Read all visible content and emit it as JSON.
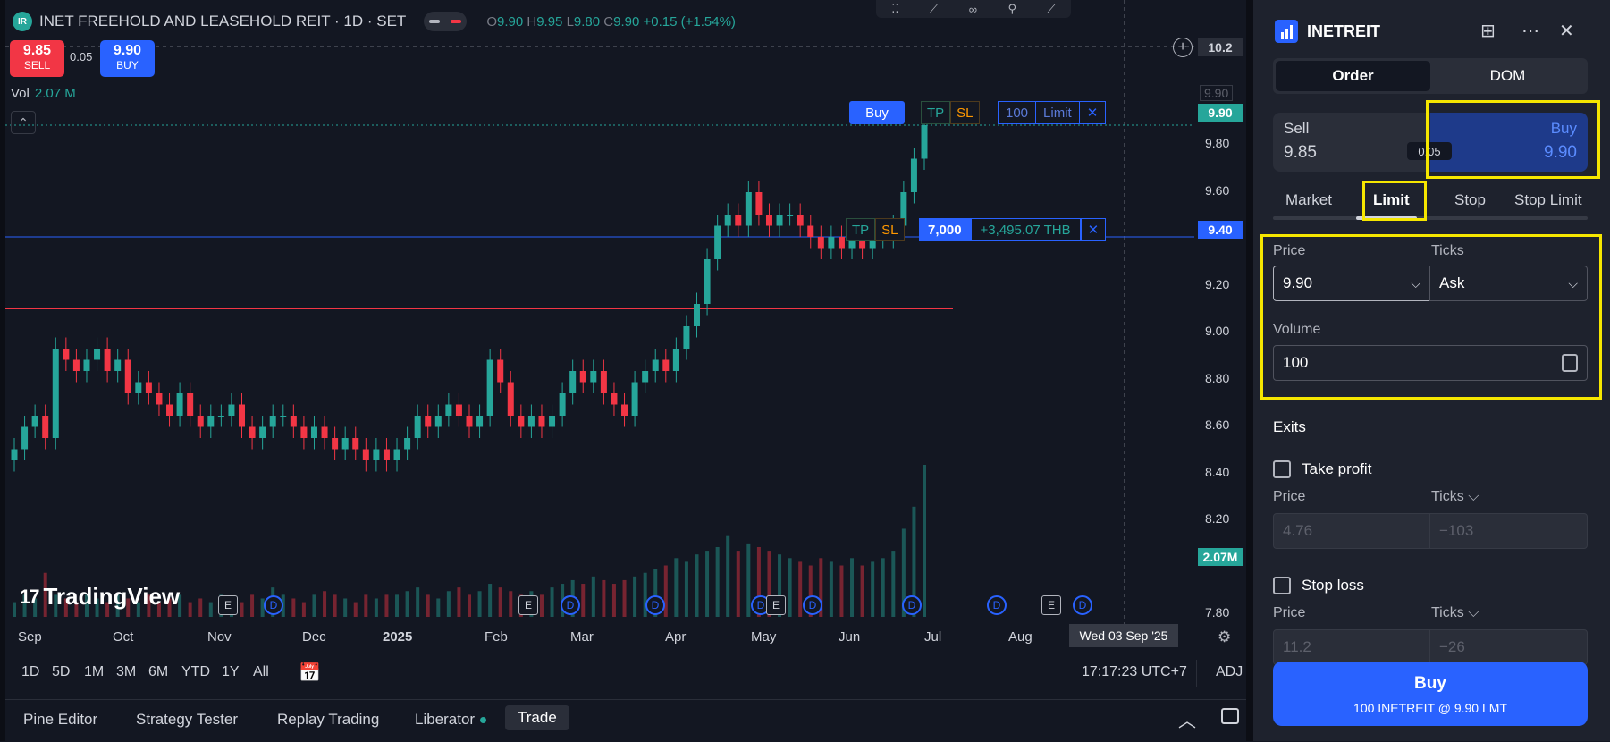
{
  "chart": {
    "title": "INET FREEHOLD AND LEASEHOLD REIT · 1D · SET",
    "logo_text": "IR",
    "ohlc": {
      "o_label": "O",
      "o": "9.90",
      "h_label": "H",
      "h": "9.95",
      "l_label": "L",
      "l": "9.80",
      "c_label": "C",
      "c": "9.90",
      "change": "+0.15 (+1.54%)"
    },
    "sell_price": "9.85",
    "sell_label": "SELL",
    "buy_price": "9.90",
    "buy_label": "BUY",
    "spread": "0.05",
    "vol_label": "Vol",
    "vol_value": "2.07 M",
    "collapse_glyph": "⌃",
    "order_line": {
      "buy_label": "Buy",
      "tp": "TP",
      "sl": "SL",
      "qty": "100",
      "type": "Limit",
      "close": "✕"
    },
    "position_line": {
      "tp": "TP",
      "sl": "SL",
      "qty": "7,000",
      "pnl": "+3,495.07 THB",
      "close": "✕"
    },
    "price_axis": {
      "top_tag": "10.2",
      "ghost": "9.90",
      "ticks": [
        "9.80",
        "9.60",
        "9.20",
        "9.00",
        "8.80",
        "8.60",
        "8.40",
        "8.20",
        "7.80"
      ],
      "last_tag": "9.90",
      "position_tag": "9.40",
      "volume_tag": "2.07M",
      "colors": {
        "last": "#26a69a",
        "position": "#2962ff",
        "volume": "#26a69a"
      }
    },
    "date_axis": {
      "labels": [
        "Sep",
        "Oct",
        "Nov",
        "Dec",
        "2025",
        "Feb",
        "Mar",
        "Apr",
        "May",
        "Jun",
        "Jul",
        "Aug"
      ],
      "crosshair": "Wed 03 Sep '25"
    },
    "events": [
      {
        "kind": "E",
        "icon": "earnings-icon"
      },
      {
        "kind": "D",
        "icon": "dividend-icon"
      },
      {
        "kind": "E",
        "icon": "earnings-icon"
      },
      {
        "kind": "D",
        "icon": "dividend-icon"
      },
      {
        "kind": "D",
        "icon": "dividend-icon"
      },
      {
        "kind": "D",
        "icon": "dividend-icon"
      },
      {
        "kind": "E",
        "icon": "earnings-icon"
      },
      {
        "kind": "D",
        "icon": "dividend-icon"
      },
      {
        "kind": "D",
        "icon": "dividend-icon"
      },
      {
        "kind": "D",
        "icon": "dividend-icon"
      },
      {
        "kind": "E",
        "icon": "earnings-icon"
      },
      {
        "kind": "D",
        "icon": "dividend-icon"
      }
    ],
    "watermark": "TradingView",
    "colors": {
      "up": "#26a69a",
      "down": "#f23645",
      "resistance": "#f23645",
      "position": "#2962ff"
    }
  },
  "chart_data": {
    "type": "candlestick",
    "xlabel": "",
    "ylabel": "",
    "ylim": [
      7.7,
      10.3
    ],
    "resistance_line": 9.08,
    "position_line": 9.4,
    "order_line": 9.9,
    "series": [
      {
        "name": "price",
        "values": [
          8.45,
          8.55,
          8.6,
          8.5,
          8.9,
          8.85,
          8.8,
          8.85,
          8.9,
          8.8,
          8.85,
          8.7,
          8.75,
          8.7,
          8.65,
          8.6,
          8.7,
          8.6,
          8.55,
          8.6,
          8.6,
          8.65,
          8.55,
          8.5,
          8.55,
          8.6,
          8.6,
          8.55,
          8.5,
          8.55,
          8.5,
          8.45,
          8.5,
          8.45,
          8.4,
          8.45,
          8.4,
          8.45,
          8.5,
          8.6,
          8.55,
          8.6,
          8.65,
          8.6,
          8.55,
          8.6,
          8.85,
          8.75,
          8.6,
          8.55,
          8.6,
          8.55,
          8.6,
          8.7,
          8.8,
          8.75,
          8.8,
          8.7,
          8.65,
          8.6,
          8.75,
          8.8,
          8.85,
          8.8,
          8.9,
          9.0,
          9.1,
          9.3,
          9.45,
          9.5,
          9.45,
          9.6,
          9.5,
          9.45,
          9.5,
          9.5,
          9.45,
          9.4,
          9.35,
          9.4,
          9.35,
          9.4,
          9.35,
          9.4,
          9.4,
          9.45,
          9.6,
          9.75,
          9.9
        ]
      },
      {
        "name": "volume",
        "values": [
          0.2,
          0.3,
          0.25,
          0.6,
          0.3,
          0.25,
          0.2,
          0.3,
          0.25,
          0.2,
          0.3,
          0.25,
          0.2,
          0.3,
          0.2,
          0.25,
          0.3,
          0.2,
          0.25,
          0.2,
          0.3,
          0.25,
          0.2,
          0.3,
          0.25,
          0.4,
          0.3,
          0.25,
          0.2,
          0.3,
          0.35,
          0.3,
          0.25,
          0.2,
          0.3,
          0.25,
          0.3,
          0.3,
          0.35,
          0.4,
          0.3,
          0.25,
          0.35,
          0.4,
          0.3,
          0.35,
          0.45,
          0.4,
          0.35,
          0.3,
          0.35,
          0.3,
          0.4,
          0.45,
          0.5,
          0.45,
          0.55,
          0.5,
          0.45,
          0.5,
          0.55,
          0.6,
          0.65,
          0.7,
          0.8,
          0.75,
          0.85,
          0.9,
          0.95,
          1.1,
          0.9,
          1.0,
          0.95,
          0.9,
          0.85,
          0.8,
          0.75,
          0.7,
          0.8,
          0.75,
          0.7,
          0.8,
          0.7,
          0.75,
          0.8,
          0.9,
          1.2,
          1.5,
          2.07
        ]
      }
    ]
  },
  "timeframes": {
    "items": [
      "1D",
      "5D",
      "1M",
      "3M",
      "6M",
      "YTD",
      "1Y",
      "All"
    ],
    "time": "17:17:23 UTC+7",
    "adj": "ADJ"
  },
  "bottom_bar": {
    "items": [
      "Pine Editor",
      "Strategy Tester",
      "Replay Trading",
      "Liberator"
    ],
    "trade": "Trade"
  },
  "panel": {
    "symbol": "INETREIT",
    "tabs": [
      "Order",
      "DOM"
    ],
    "sell_label": "Sell",
    "sell_price": "9.85",
    "buy_label": "Buy",
    "buy_price": "9.90",
    "spread": "0.05",
    "order_types": [
      "Market",
      "Limit",
      "Stop",
      "Stop Limit"
    ],
    "price_label": "Price",
    "price_value": "9.90",
    "ticks_label": "Ticks",
    "ticks_value": "Ask",
    "volume_label": "Volume",
    "volume_value": "100",
    "exits_label": "Exits",
    "take_profit": {
      "label": "Take profit",
      "price_label": "Price",
      "price": "4.76",
      "ticks_label": "Ticks",
      "ticks": "−103"
    },
    "stop_loss": {
      "label": "Stop loss",
      "price_label": "Price",
      "price": "11.2",
      "ticks_label": "Ticks",
      "ticks": "−26"
    },
    "submit": {
      "title": "Buy",
      "subtitle": "100 INETREIT @ 9.90 LMT"
    }
  }
}
